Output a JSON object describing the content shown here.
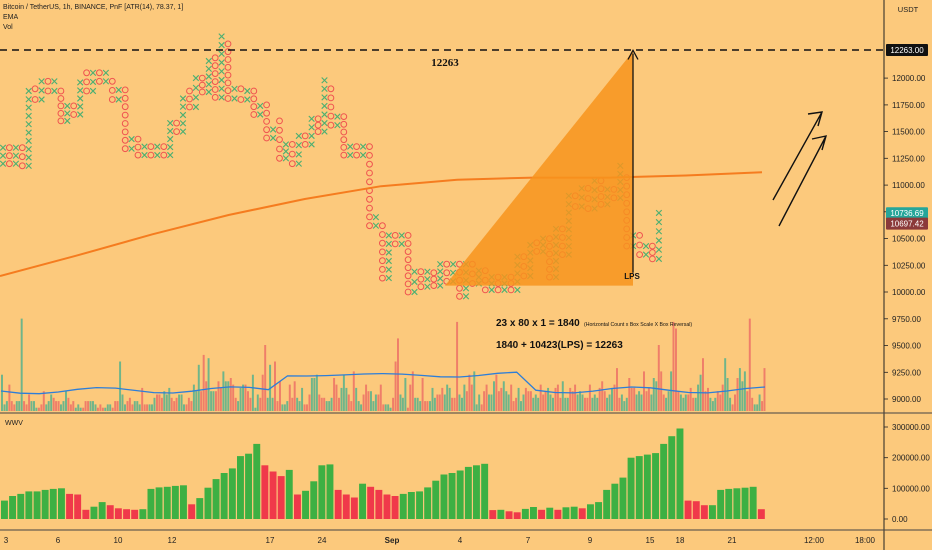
{
  "chart_header": {
    "symbol_line": "Bitcoin / TetherUS, 1h, BINANCE, PnF [ATR(14), 78.37, 1]",
    "ema_label": "EMA",
    "vol_label": "Vol"
  },
  "price_axis": {
    "currency": "USDT",
    "ticks": [
      "12263.00",
      "12000.00",
      "11750.00",
      "11500.00",
      "11250.00",
      "11000.00",
      "10750.00",
      "10500.00",
      "10250.00",
      "10000.00",
      "9750.00",
      "9500.00",
      "9250.00",
      "9000.00"
    ],
    "badges": {
      "target": "12263.00",
      "current_green": "10736.69",
      "current_red": "10697.42"
    }
  },
  "annotations": {
    "target_label": "12263",
    "lps_label": "LPS",
    "formula_line1": "23 x 80 x 1 = 1840",
    "formula_note": "(Horizontal Count x Box Scale X Box Reversal)",
    "formula_line2": "1840 + 10423(LPS) = 12263"
  },
  "lower_pane": {
    "indicator_label": "WWV",
    "ticks": [
      "300000.00",
      "200000.00",
      "100000.00",
      "0.00"
    ]
  },
  "time_axis": {
    "labels": [
      "3",
      "6",
      "10",
      "12",
      "17",
      "24",
      "Sep",
      "4",
      "7",
      "9",
      "15",
      "18",
      "21",
      "12:00",
      "18:00"
    ]
  },
  "colors": {
    "background": "#fcc97c",
    "x_column": "#4caf72",
    "o_column": "#ef5350",
    "vol_up": "#6fb58a",
    "vol_down": "#ef7e69",
    "ema": "#f57c1f",
    "vol_ma": "#2d7ed8",
    "wwv_up": "#3db043",
    "wwv_down": "#f0394a",
    "triangle": "#f7941d",
    "badge_green": "#26a69a",
    "badge_red": "#8b3a3a"
  },
  "chart_data": [
    {
      "type": "point-and-figure",
      "title": "Bitcoin / TetherUS, 1h, BINANCE, PnF [ATR(14), 78.37, 1]",
      "box_size": 78.37,
      "reversal": 1,
      "ylim": [
        8900,
        12420
      ],
      "x_labels": [
        "3",
        "6",
        "10",
        "12",
        "17",
        "24",
        "Sep",
        "4",
        "7",
        "9",
        "15",
        "18",
        "21",
        "12:00",
        "18:00"
      ],
      "columns": [
        {
          "type": "X",
          "low": 11200,
          "high": 11350
        },
        {
          "type": "O",
          "low": 11200,
          "high": 11350
        },
        {
          "type": "X",
          "low": 11200,
          "high": 11350
        },
        {
          "type": "O",
          "low": 11180,
          "high": 11350
        },
        {
          "type": "X",
          "low": 11180,
          "high": 11880
        },
        {
          "type": "O",
          "low": 11800,
          "high": 11900
        },
        {
          "type": "X",
          "low": 11800,
          "high": 11970
        },
        {
          "type": "O",
          "low": 11880,
          "high": 11970
        },
        {
          "type": "X",
          "low": 11880,
          "high": 11970
        },
        {
          "type": "O",
          "low": 11600,
          "high": 11880
        },
        {
          "type": "X",
          "low": 11600,
          "high": 11740
        },
        {
          "type": "O",
          "low": 11660,
          "high": 11740
        },
        {
          "type": "X",
          "low": 11660,
          "high": 11960
        },
        {
          "type": "O",
          "low": 11880,
          "high": 12050
        },
        {
          "type": "X",
          "low": 11880,
          "high": 12050
        },
        {
          "type": "O",
          "low": 11970,
          "high": 12050
        },
        {
          "type": "X",
          "low": 11970,
          "high": 12050
        },
        {
          "type": "O",
          "low": 11800,
          "high": 11970
        },
        {
          "type": "X",
          "low": 11800,
          "high": 11890
        },
        {
          "type": "O",
          "low": 11340,
          "high": 11890
        },
        {
          "type": "X",
          "low": 11340,
          "high": 11430
        },
        {
          "type": "O",
          "low": 11280,
          "high": 11430
        },
        {
          "type": "X",
          "low": 11280,
          "high": 11360
        },
        {
          "type": "O",
          "low": 11280,
          "high": 11360
        },
        {
          "type": "X",
          "low": 11280,
          "high": 11360
        },
        {
          "type": "O",
          "low": 11280,
          "high": 11360
        },
        {
          "type": "X",
          "low": 11280,
          "high": 11580
        },
        {
          "type": "O",
          "low": 11500,
          "high": 11580
        },
        {
          "type": "X",
          "low": 11500,
          "high": 11810
        },
        {
          "type": "O",
          "low": 11730,
          "high": 11880
        },
        {
          "type": "X",
          "low": 11730,
          "high": 12000
        },
        {
          "type": "O",
          "low": 11870,
          "high": 12000
        },
        {
          "type": "X",
          "low": 11870,
          "high": 12160
        },
        {
          "type": "O",
          "low": 11820,
          "high": 12190
        },
        {
          "type": "X",
          "low": 11820,
          "high": 12390
        },
        {
          "type": "O",
          "low": 11810,
          "high": 12320
        },
        {
          "type": "X",
          "low": 11810,
          "high": 11900
        },
        {
          "type": "O",
          "low": 11800,
          "high": 11900
        },
        {
          "type": "X",
          "low": 11800,
          "high": 11880
        },
        {
          "type": "O",
          "low": 11660,
          "high": 11880
        },
        {
          "type": "X",
          "low": 11660,
          "high": 11740
        },
        {
          "type": "O",
          "low": 11440,
          "high": 11750
        },
        {
          "type": "X",
          "low": 11440,
          "high": 11520
        },
        {
          "type": "O",
          "low": 11250,
          "high": 11600
        },
        {
          "type": "X",
          "low": 11250,
          "high": 11380
        },
        {
          "type": "O",
          "low": 11200,
          "high": 11380
        },
        {
          "type": "X",
          "low": 11200,
          "high": 11460
        },
        {
          "type": "O",
          "low": 11380,
          "high": 11460
        },
        {
          "type": "X",
          "low": 11380,
          "high": 11620
        },
        {
          "type": "O",
          "low": 11500,
          "high": 11620
        },
        {
          "type": "X",
          "low": 11500,
          "high": 11980
        },
        {
          "type": "O",
          "low": 11560,
          "high": 11900
        },
        {
          "type": "X",
          "low": 11560,
          "high": 11640
        },
        {
          "type": "O",
          "low": 11280,
          "high": 11640
        },
        {
          "type": "X",
          "low": 11280,
          "high": 11360
        },
        {
          "type": "O",
          "low": 11280,
          "high": 11360
        },
        {
          "type": "X",
          "low": 11280,
          "high": 11360
        },
        {
          "type": "O",
          "low": 10620,
          "high": 11360
        },
        {
          "type": "X",
          "low": 10620,
          "high": 10700
        },
        {
          "type": "O",
          "low": 10130,
          "high": 10620
        },
        {
          "type": "X",
          "low": 10130,
          "high": 10530
        },
        {
          "type": "O",
          "low": 10450,
          "high": 10530
        },
        {
          "type": "X",
          "low": 10450,
          "high": 10530
        },
        {
          "type": "O",
          "low": 10000,
          "high": 10530
        },
        {
          "type": "X",
          "low": 10000,
          "high": 10190
        },
        {
          "type": "O",
          "low": 10050,
          "high": 10190
        },
        {
          "type": "X",
          "low": 10050,
          "high": 10190
        },
        {
          "type": "O",
          "low": 10060,
          "high": 10180
        },
        {
          "type": "X",
          "low": 10060,
          "high": 10260
        },
        {
          "type": "O",
          "low": 10100,
          "high": 10260
        },
        {
          "type": "X",
          "low": 10100,
          "high": 10260
        },
        {
          "type": "O",
          "low": 9960,
          "high": 10260
        },
        {
          "type": "X",
          "low": 9960,
          "high": 10260
        },
        {
          "type": "O",
          "low": 10080,
          "high": 10260
        },
        {
          "type": "X",
          "low": 10080,
          "high": 10200
        },
        {
          "type": "O",
          "low": 10020,
          "high": 10200
        },
        {
          "type": "X",
          "low": 10020,
          "high": 10140
        },
        {
          "type": "O",
          "low": 10020,
          "high": 10140
        },
        {
          "type": "X",
          "low": 10020,
          "high": 10140
        },
        {
          "type": "O",
          "low": 10020,
          "high": 10140
        },
        {
          "type": "X",
          "low": 10020,
          "high": 10330
        },
        {
          "type": "O",
          "low": 10150,
          "high": 10330
        },
        {
          "type": "X",
          "low": 10150,
          "high": 10440
        },
        {
          "type": "O",
          "low": 10380,
          "high": 10460
        },
        {
          "type": "X",
          "low": 10380,
          "high": 10500
        },
        {
          "type": "O",
          "low": 10140,
          "high": 10500
        },
        {
          "type": "X",
          "low": 10140,
          "high": 10590
        },
        {
          "type": "O",
          "low": 10350,
          "high": 10590
        },
        {
          "type": "X",
          "low": 10350,
          "high": 10900
        },
        {
          "type": "O",
          "low": 10800,
          "high": 10900
        },
        {
          "type": "X",
          "low": 10800,
          "high": 10970
        },
        {
          "type": "O",
          "low": 10780,
          "high": 10970
        },
        {
          "type": "X",
          "low": 10780,
          "high": 11040
        },
        {
          "type": "O",
          "low": 10820,
          "high": 11040
        },
        {
          "type": "X",
          "low": 10820,
          "high": 10960
        },
        {
          "type": "O",
          "low": 10880,
          "high": 10960
        },
        {
          "type": "X",
          "low": 10880,
          "high": 11180
        },
        {
          "type": "O",
          "low": 10430,
          "high": 11070
        },
        {
          "type": "X",
          "low": 10430,
          "high": 10530
        },
        {
          "type": "O",
          "low": 10350,
          "high": 10530
        },
        {
          "type": "X",
          "low": 10350,
          "high": 10430
        },
        {
          "type": "O",
          "low": 10310,
          "high": 10430
        },
        {
          "type": "X",
          "low": 10310,
          "high": 10740
        }
      ]
    },
    {
      "type": "line",
      "name": "EMA",
      "values": [
        10150,
        10340,
        10540,
        10720,
        10870,
        10990,
        11050,
        11070,
        11070,
        11090,
        11120
      ]
    },
    {
      "type": "bar",
      "name": "Vol",
      "values": [
        11,
        2,
        3,
        8,
        3,
        2,
        3,
        3,
        28,
        3,
        2,
        5,
        3,
        3,
        1,
        1,
        2,
        6,
        2,
        3,
        5,
        4,
        3,
        3,
        2,
        3,
        6,
        4,
        2,
        3,
        1,
        2,
        1,
        1,
        3,
        3,
        3,
        3,
        2,
        1,
        2,
        1,
        1,
        2,
        2,
        1,
        3,
        3,
        15,
        5,
        2,
        3,
        4,
        2,
        3,
        3,
        2,
        7,
        2,
        2,
        2,
        2,
        4,
        5,
        5,
        4,
        6,
        5,
        7,
        4,
        3,
        4,
        5,
        5,
        2,
        2,
        4,
        3,
        8,
        6,
        14,
        6,
        17,
        9,
        16,
        6,
        6,
        6,
        9,
        7,
        12,
        9,
        9,
        10,
        8,
        4,
        3,
        7,
        8,
        8,
        6,
        4,
        11,
        1,
        5,
        4,
        11,
        20,
        4,
        14,
        4,
        15,
        3,
        9,
        2,
        2,
        3,
        8,
        4,
        9,
        4,
        3,
        7,
        2,
        2,
        5,
        10,
        10,
        11,
        5,
        4,
        4,
        3,
        3,
        4,
        10,
        8,
        4,
        7,
        11,
        7,
        5,
        3,
        12,
        7,
        3,
        2,
        5,
        8,
        6,
        6,
        3,
        5,
        5,
        8,
        2,
        2,
        2,
        1,
        4,
        15,
        22,
        5,
        4,
        10,
        1,
        8,
        12,
        4,
        4,
        3,
        10,
        3,
        3,
        3,
        7,
        4,
        5,
        5,
        7,
        5,
        8,
        7,
        4,
        4,
        27,
        5,
        4,
        8,
        6,
        11,
        8,
        12,
        2,
        5,
        2,
        6,
        8,
        5,
        5,
        9,
        11,
        6,
        7,
        9,
        6,
        5,
        8,
        3,
        4,
        7,
        3,
        5,
        7,
        6,
        6,
        4,
        5,
        4,
        8,
        5,
        6,
        7,
        5,
        4,
        7,
        8,
        4,
        9,
        4,
        4,
        7,
        6,
        8,
        5,
        6,
        5,
        4,
        4,
        8,
        4,
        5,
        4,
        7,
        9,
        6,
        4,
        5,
        7,
        8,
        13,
        4,
        5,
        3,
        4,
        10,
        7,
        7,
        5,
        6,
        5,
        12,
        6,
        7,
        5,
        10,
        9,
        20,
        12,
        5,
        4,
        6,
        12,
        27,
        25,
        6,
        5,
        4,
        5,
        5,
        7,
        4,
        4,
        8,
        11,
        16,
        6,
        7,
        4,
        3,
        4,
        6,
        5,
        8,
        16,
        10,
        4,
        2,
        5,
        10,
        13,
        9,
        12,
        6,
        28,
        4,
        2,
        2,
        5,
        3,
        13
      ],
      "note": "relative volume levels, not priced"
    },
    {
      "type": "bar",
      "name": "WWV",
      "ylim": [
        -15000,
        330000
      ],
      "values": [
        60000,
        75000,
        82000,
        90000,
        90000,
        95000,
        98000,
        100000,
        82000,
        80000,
        30000,
        40000,
        55000,
        45000,
        35000,
        32000,
        30000,
        32000,
        98000,
        103000,
        105000,
        108000,
        110000,
        48000,
        68000,
        102000,
        130000,
        150000,
        165000,
        205000,
        213000,
        245000,
        175000,
        155000,
        140000,
        160000,
        80000,
        92000,
        123000,
        175000,
        178000,
        95000,
        80000,
        70000,
        115000,
        105000,
        95000,
        80000,
        75000,
        82000,
        88000,
        90000,
        103000,
        125000,
        145000,
        150000,
        158000,
        170000,
        175000,
        180000,
        29000,
        30000,
        25000,
        22000,
        33000,
        39000,
        30000,
        37000,
        30000,
        38000,
        40000,
        35000,
        48000,
        55000,
        95000,
        115000,
        135000,
        200000,
        205000,
        210000,
        215000,
        245000,
        270000,
        295000,
        60000,
        58000,
        45000,
        45000,
        95000,
        98000,
        100000,
        102000,
        105000,
        32000
      ],
      "colors_hint": "green rising, red falling"
    }
  ]
}
